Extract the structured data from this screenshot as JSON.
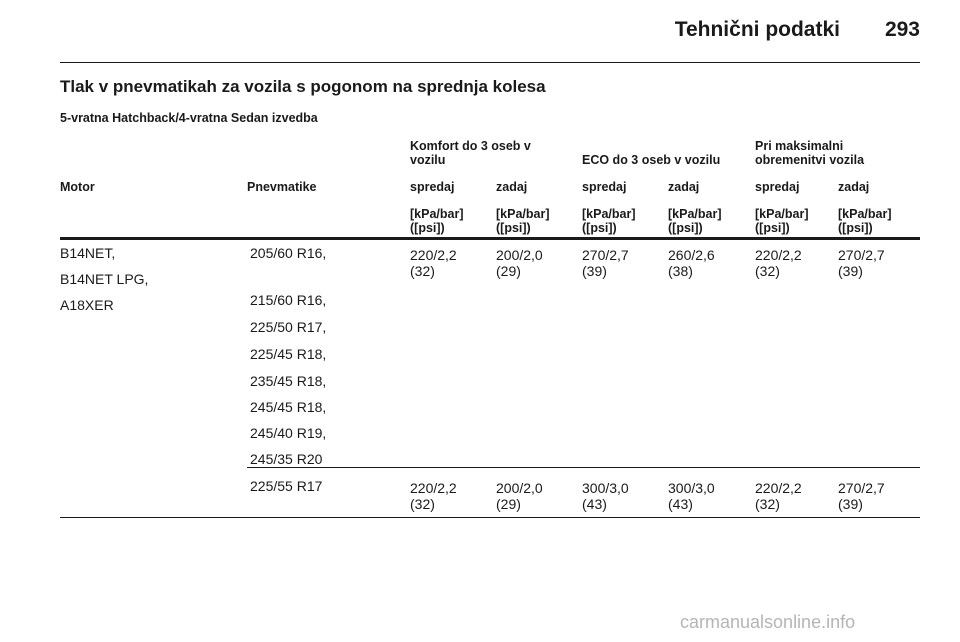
{
  "header": {
    "title": "Tehnični podatki",
    "page_number": "293"
  },
  "section_title": "Tlak v pnevmatikah za vozila s pogonom na sprednja kolesa",
  "variant": "5-vratna Hatchback/4-vratna Sedan izvedba",
  "groups": {
    "komfort": [
      "Komfort do 3 oseb v",
      "vozilu"
    ],
    "eco": "ECO do 3 oseb v vozilu",
    "max": [
      "Pri maksimalni",
      "obremenitvi vozila"
    ]
  },
  "columns": {
    "motor": "Motor",
    "tires": "Pnevmatike",
    "front": "spredaj",
    "rear": "zadaj"
  },
  "unit": [
    "[kPa/bar]",
    "([psi])"
  ],
  "rows": [
    {
      "motors": [
        "B14NET,",
        "B14NET LPG,",
        "A18XER"
      ],
      "tires": [
        "205/60 R16,",
        "215/60 R16,",
        "225/50 R17,",
        "225/45 R18,",
        "235/45 R18,",
        "245/45 R18,",
        "245/40 R19,",
        "245/35 R20"
      ],
      "values": [
        [
          "220/2,2",
          "(32)"
        ],
        [
          "200/2,0",
          "(29)"
        ],
        [
          "270/2,7",
          "(39)"
        ],
        [
          "260/2,6",
          "(38)"
        ],
        [
          "220/2,2",
          "(32)"
        ],
        [
          "270/2,7",
          "(39)"
        ]
      ]
    },
    {
      "tires": [
        "225/55 R17"
      ],
      "values": [
        [
          "220/2,2",
          "(32)"
        ],
        [
          "200/2,0",
          "(29)"
        ],
        [
          "300/3,0",
          "(43)"
        ],
        [
          "300/3,0",
          "(43)"
        ],
        [
          "220/2,2",
          "(32)"
        ],
        [
          "270/2,7",
          "(39)"
        ]
      ]
    }
  ],
  "watermark": "carmanualsonline.info"
}
